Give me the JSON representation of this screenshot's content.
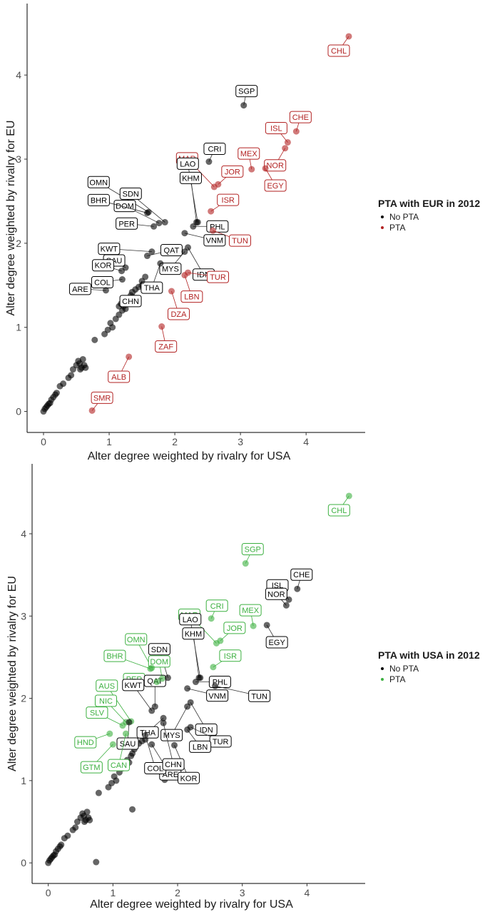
{
  "chart_data": [
    {
      "type": "scatter",
      "xlabel": "Alter degree weighted by rivalry for USA",
      "ylabel": "Alter degree weighted by rivalry for EU",
      "xlim": [
        -0.25,
        4.9
      ],
      "ylim": [
        -0.25,
        4.85
      ],
      "xticks": [
        0,
        1,
        2,
        3,
        4
      ],
      "yticks": [
        0,
        1,
        2,
        3,
        4
      ],
      "grid": false,
      "legend": {
        "title": "PTA with EUR in 2012",
        "placement": "right",
        "entries": [
          {
            "label": "No PTA",
            "color": "#000000"
          },
          {
            "label": "PTA",
            "color": "#b22222"
          }
        ]
      },
      "labeled_points": [
        {
          "code": "CHL",
          "x": 4.65,
          "y": 4.46,
          "group": "PTA"
        },
        {
          "code": "SGP",
          "x": 3.05,
          "y": 3.64,
          "group": "No PTA"
        },
        {
          "code": "CHE",
          "x": 3.85,
          "y": 3.33,
          "group": "PTA"
        },
        {
          "code": "ISL",
          "x": 3.72,
          "y": 3.2,
          "group": "PTA"
        },
        {
          "code": "NOR",
          "x": 3.68,
          "y": 3.13,
          "group": "PTA"
        },
        {
          "code": "MEX",
          "x": 3.17,
          "y": 2.88,
          "group": "PTA"
        },
        {
          "code": "EGY",
          "x": 3.38,
          "y": 2.89,
          "group": "PTA"
        },
        {
          "code": "CRI",
          "x": 2.52,
          "y": 2.97,
          "group": "No PTA"
        },
        {
          "code": "MAR",
          "x": 2.6,
          "y": 2.67,
          "group": "PTA"
        },
        {
          "code": "JOR",
          "x": 2.66,
          "y": 2.7,
          "group": "PTA"
        },
        {
          "code": "LAO",
          "x": 2.35,
          "y": 2.25,
          "group": "No PTA"
        },
        {
          "code": "KHM",
          "x": 2.33,
          "y": 2.25,
          "group": "No PTA"
        },
        {
          "code": "ISR",
          "x": 2.55,
          "y": 2.38,
          "group": "PTA"
        },
        {
          "code": "OMN",
          "x": 1.6,
          "y": 2.37,
          "group": "No PTA"
        },
        {
          "code": "SDN",
          "x": 1.85,
          "y": 2.25,
          "group": "No PTA"
        },
        {
          "code": "DOM",
          "x": 1.76,
          "y": 2.24,
          "group": "No PTA"
        },
        {
          "code": "BHR",
          "x": 1.58,
          "y": 2.36,
          "group": "No PTA"
        },
        {
          "code": "PER",
          "x": 1.68,
          "y": 2.2,
          "group": "No PTA"
        },
        {
          "code": "PHL",
          "x": 2.28,
          "y": 2.2,
          "group": "No PTA"
        },
        {
          "code": "TUN",
          "x": 2.58,
          "y": 2.15,
          "group": "PTA"
        },
        {
          "code": "VNM",
          "x": 2.15,
          "y": 2.12,
          "group": "No PTA"
        },
        {
          "code": "KWT",
          "x": 1.65,
          "y": 1.9,
          "group": "No PTA"
        },
        {
          "code": "QAT",
          "x": 1.58,
          "y": 1.85,
          "group": "No PTA"
        },
        {
          "code": "IDN",
          "x": 2.2,
          "y": 1.95,
          "group": "No PTA"
        },
        {
          "code": "SAU",
          "x": 1.25,
          "y": 1.71,
          "group": "No PTA"
        },
        {
          "code": "MYS",
          "x": 2.15,
          "y": 1.9,
          "group": "No PTA"
        },
        {
          "code": "ARE",
          "x": 0.95,
          "y": 1.44,
          "group": "No PTA"
        },
        {
          "code": "KOR",
          "x": 1.19,
          "y": 1.67,
          "group": "No PTA"
        },
        {
          "code": "THA",
          "x": 1.78,
          "y": 1.76,
          "group": "No PTA"
        },
        {
          "code": "TUR",
          "x": 2.2,
          "y": 1.65,
          "group": "PTA"
        },
        {
          "code": "COL",
          "x": 1.2,
          "y": 1.57,
          "group": "No PTA"
        },
        {
          "code": "CHN",
          "x": 1.5,
          "y": 1.55,
          "group": "No PTA"
        },
        {
          "code": "LBN",
          "x": 2.15,
          "y": 1.62,
          "group": "PTA"
        },
        {
          "code": "DZA",
          "x": 1.95,
          "y": 1.43,
          "group": "PTA"
        },
        {
          "code": "ZAF",
          "x": 1.8,
          "y": 1.01,
          "group": "PTA"
        },
        {
          "code": "ALB",
          "x": 1.3,
          "y": 0.65,
          "group": "PTA"
        },
        {
          "code": "SMR",
          "x": 0.74,
          "y": 0.01,
          "group": "PTA"
        }
      ],
      "other_points": [
        {
          "x": 0.0,
          "y": 0.0
        },
        {
          "x": 0.02,
          "y": 0.03
        },
        {
          "x": 0.04,
          "y": 0.05
        },
        {
          "x": 0.06,
          "y": 0.07
        },
        {
          "x": 0.08,
          "y": 0.09
        },
        {
          "x": 0.1,
          "y": 0.1
        },
        {
          "x": 0.12,
          "y": 0.14
        },
        {
          "x": 0.15,
          "y": 0.17
        },
        {
          "x": 0.18,
          "y": 0.2
        },
        {
          "x": 0.2,
          "y": 0.22
        },
        {
          "x": 0.25,
          "y": 0.3
        },
        {
          "x": 0.3,
          "y": 0.33
        },
        {
          "x": 0.38,
          "y": 0.4
        },
        {
          "x": 0.42,
          "y": 0.43
        },
        {
          "x": 0.45,
          "y": 0.5
        },
        {
          "x": 0.5,
          "y": 0.55
        },
        {
          "x": 0.53,
          "y": 0.6
        },
        {
          "x": 0.55,
          "y": 0.57
        },
        {
          "x": 0.56,
          "y": 0.5
        },
        {
          "x": 0.58,
          "y": 0.52
        },
        {
          "x": 0.6,
          "y": 0.62
        },
        {
          "x": 0.62,
          "y": 0.55
        },
        {
          "x": 0.64,
          "y": 0.52
        },
        {
          "x": 0.78,
          "y": 0.85
        },
        {
          "x": 0.93,
          "y": 0.92
        },
        {
          "x": 0.98,
          "y": 0.97
        },
        {
          "x": 1.02,
          "y": 1.05
        },
        {
          "x": 1.05,
          "y": 1.0
        },
        {
          "x": 1.1,
          "y": 1.1
        },
        {
          "x": 1.15,
          "y": 1.15
        },
        {
          "x": 1.2,
          "y": 1.2
        },
        {
          "x": 1.22,
          "y": 1.25
        },
        {
          "x": 1.25,
          "y": 1.22
        },
        {
          "x": 1.28,
          "y": 1.3
        },
        {
          "x": 1.3,
          "y": 1.33
        },
        {
          "x": 1.33,
          "y": 1.38
        },
        {
          "x": 1.35,
          "y": 1.42
        },
        {
          "x": 1.4,
          "y": 1.45
        },
        {
          "x": 1.45,
          "y": 1.48
        },
        {
          "x": 1.5,
          "y": 1.5
        },
        {
          "x": 1.55,
          "y": 1.6
        },
        {
          "x": 1.15,
          "y": 1.25
        },
        {
          "x": 1.18,
          "y": 1.28
        }
      ]
    },
    {
      "type": "scatter",
      "xlabel": "Alter degree weighted by rivalry for USA",
      "ylabel": "Alter degree weighted by rivalry for EU",
      "xlim": [
        -0.25,
        4.9
      ],
      "ylim": [
        -0.25,
        4.85
      ],
      "xticks": [
        0,
        1,
        2,
        3,
        4
      ],
      "yticks": [
        0,
        1,
        2,
        3,
        4
      ],
      "grid": false,
      "legend": {
        "title": "PTA with USA in 2012",
        "placement": "right",
        "entries": [
          {
            "label": "No PTA",
            "color": "#000000"
          },
          {
            "label": "PTA",
            "color": "#3cb040"
          }
        ]
      },
      "labeled_points": [
        {
          "code": "CHL",
          "x": 4.65,
          "y": 4.46,
          "group": "PTA"
        },
        {
          "code": "SGP",
          "x": 3.05,
          "y": 3.64,
          "group": "PTA"
        },
        {
          "code": "CHE",
          "x": 3.85,
          "y": 3.33,
          "group": "No PTA"
        },
        {
          "code": "ISL",
          "x": 3.72,
          "y": 3.2,
          "group": "No PTA"
        },
        {
          "code": "NOR",
          "x": 3.68,
          "y": 3.13,
          "group": "No PTA"
        },
        {
          "code": "MEX",
          "x": 3.17,
          "y": 2.88,
          "group": "PTA"
        },
        {
          "code": "EGY",
          "x": 3.38,
          "y": 2.89,
          "group": "No PTA"
        },
        {
          "code": "CRI",
          "x": 2.52,
          "y": 2.97,
          "group": "PTA"
        },
        {
          "code": "MAR",
          "x": 2.6,
          "y": 2.67,
          "group": "PTA"
        },
        {
          "code": "JOR",
          "x": 2.66,
          "y": 2.7,
          "group": "PTA"
        },
        {
          "code": "LAO",
          "x": 2.35,
          "y": 2.25,
          "group": "No PTA"
        },
        {
          "code": "KHM",
          "x": 2.33,
          "y": 2.25,
          "group": "No PTA"
        },
        {
          "code": "ISR",
          "x": 2.55,
          "y": 2.38,
          "group": "PTA"
        },
        {
          "code": "OMN",
          "x": 1.6,
          "y": 2.37,
          "group": "PTA"
        },
        {
          "code": "SDN",
          "x": 1.85,
          "y": 2.25,
          "group": "No PTA"
        },
        {
          "code": "DOM",
          "x": 1.76,
          "y": 2.24,
          "group": "PTA"
        },
        {
          "code": "BHR",
          "x": 1.58,
          "y": 2.36,
          "group": "PTA"
        },
        {
          "code": "PER",
          "x": 1.68,
          "y": 2.2,
          "group": "PTA"
        },
        {
          "code": "PHL",
          "x": 2.28,
          "y": 2.2,
          "group": "No PTA"
        },
        {
          "code": "TUN",
          "x": 2.58,
          "y": 2.15,
          "group": "No PTA"
        },
        {
          "code": "AUS",
          "x": 1.28,
          "y": 1.72,
          "group": "PTA"
        },
        {
          "code": "KWT",
          "x": 1.6,
          "y": 1.85,
          "group": "No PTA"
        },
        {
          "code": "QAT",
          "x": 1.65,
          "y": 1.9,
          "group": "No PTA"
        },
        {
          "code": "IDN",
          "x": 2.2,
          "y": 1.95,
          "group": "No PTA"
        },
        {
          "code": "VNM",
          "x": 2.15,
          "y": 2.12,
          "group": "No PTA"
        },
        {
          "code": "NIC",
          "x": 1.2,
          "y": 1.71,
          "group": "PTA"
        },
        {
          "code": "THA",
          "x": 1.78,
          "y": 1.76,
          "group": "No PTA"
        },
        {
          "code": "MYS",
          "x": 2.15,
          "y": 1.9,
          "group": "No PTA"
        },
        {
          "code": "SLV",
          "x": 1.15,
          "y": 1.67,
          "group": "PTA"
        },
        {
          "code": "TUR",
          "x": 2.2,
          "y": 1.65,
          "group": "No PTA"
        },
        {
          "code": "LBN",
          "x": 2.15,
          "y": 1.62,
          "group": "No PTA"
        },
        {
          "code": "SAU",
          "x": 1.25,
          "y": 1.71,
          "group": "No PTA"
        },
        {
          "code": "ARE",
          "x": 1.6,
          "y": 1.44,
          "group": "No PTA"
        },
        {
          "code": "HND",
          "x": 0.95,
          "y": 1.57,
          "group": "PTA"
        },
        {
          "code": "KOR",
          "x": 1.95,
          "y": 1.43,
          "group": "No PTA"
        },
        {
          "code": "GTM",
          "x": 1.0,
          "y": 1.44,
          "group": "PTA"
        },
        {
          "code": "CAN",
          "x": 1.2,
          "y": 1.57,
          "group": "PTA"
        },
        {
          "code": "COL",
          "x": 1.5,
          "y": 1.55,
          "group": "No PTA"
        },
        {
          "code": "CHN",
          "x": 1.78,
          "y": 1.7,
          "group": "No PTA"
        }
      ],
      "other_points": [
        {
          "x": 0.0,
          "y": 0.0
        },
        {
          "x": 0.02,
          "y": 0.03
        },
        {
          "x": 0.04,
          "y": 0.05
        },
        {
          "x": 0.06,
          "y": 0.07
        },
        {
          "x": 0.08,
          "y": 0.09
        },
        {
          "x": 0.1,
          "y": 0.1
        },
        {
          "x": 0.12,
          "y": 0.14
        },
        {
          "x": 0.15,
          "y": 0.17
        },
        {
          "x": 0.18,
          "y": 0.2
        },
        {
          "x": 0.2,
          "y": 0.22
        },
        {
          "x": 0.25,
          "y": 0.3
        },
        {
          "x": 0.3,
          "y": 0.33
        },
        {
          "x": 0.38,
          "y": 0.4
        },
        {
          "x": 0.42,
          "y": 0.43
        },
        {
          "x": 0.45,
          "y": 0.5
        },
        {
          "x": 0.5,
          "y": 0.55
        },
        {
          "x": 0.53,
          "y": 0.6
        },
        {
          "x": 0.55,
          "y": 0.57
        },
        {
          "x": 0.56,
          "y": 0.5
        },
        {
          "x": 0.58,
          "y": 0.52
        },
        {
          "x": 0.6,
          "y": 0.62
        },
        {
          "x": 0.62,
          "y": 0.55
        },
        {
          "x": 0.64,
          "y": 0.52
        },
        {
          "x": 0.78,
          "y": 0.85
        },
        {
          "x": 0.93,
          "y": 0.92
        },
        {
          "x": 0.98,
          "y": 0.97
        },
        {
          "x": 1.02,
          "y": 1.05
        },
        {
          "x": 1.05,
          "y": 1.0
        },
        {
          "x": 1.1,
          "y": 1.1
        },
        {
          "x": 1.15,
          "y": 1.15
        },
        {
          "x": 1.2,
          "y": 1.2
        },
        {
          "x": 1.22,
          "y": 1.25
        },
        {
          "x": 1.25,
          "y": 1.22
        },
        {
          "x": 1.28,
          "y": 1.3
        },
        {
          "x": 1.3,
          "y": 1.33
        },
        {
          "x": 1.33,
          "y": 1.38
        },
        {
          "x": 1.35,
          "y": 1.42
        },
        {
          "x": 1.4,
          "y": 1.45
        },
        {
          "x": 1.45,
          "y": 1.48
        },
        {
          "x": 1.5,
          "y": 1.5
        },
        {
          "x": 1.8,
          "y": 1.01
        },
        {
          "x": 1.3,
          "y": 0.65
        },
        {
          "x": 0.74,
          "y": 0.01
        }
      ]
    }
  ]
}
